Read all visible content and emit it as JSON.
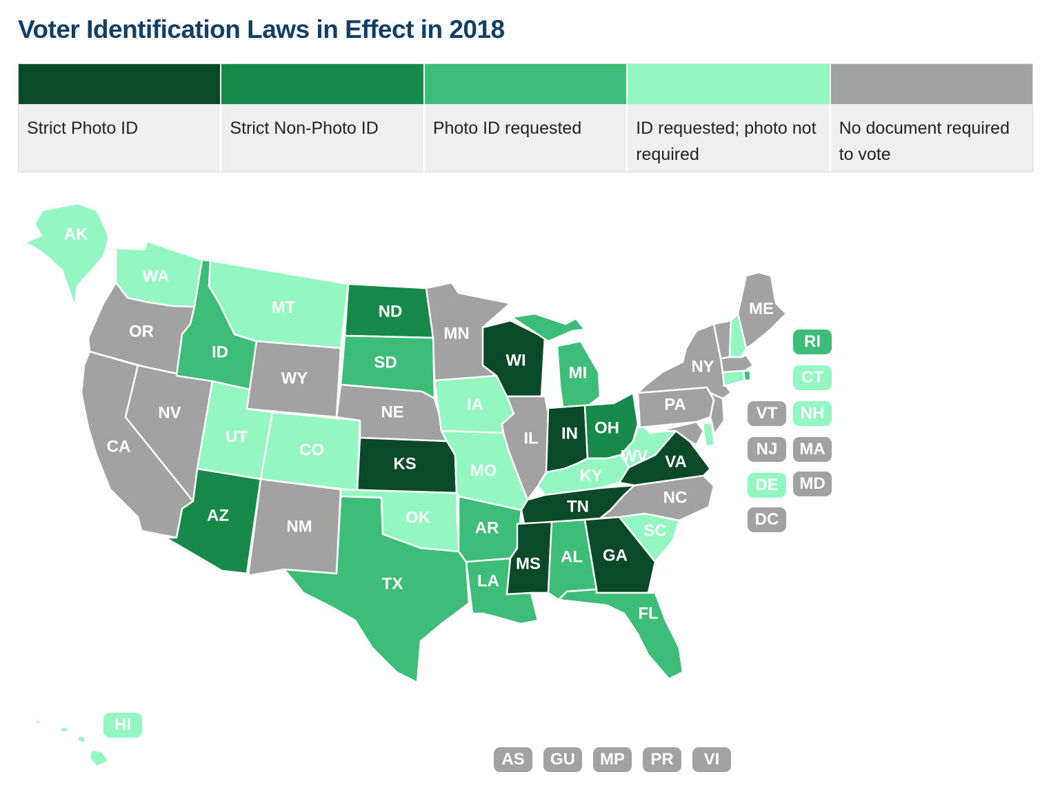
{
  "title": "Voter Identification Laws in Effect in 2018",
  "legend": [
    {
      "key": "strict_photo",
      "label": "Strict Photo ID",
      "color": "#0b4a28"
    },
    {
      "key": "strict_nonphoto",
      "label": "Strict Non-Photo ID",
      "color": "#178a49"
    },
    {
      "key": "photo_requested",
      "label": "Photo ID requested",
      "color": "#3dbd78"
    },
    {
      "key": "id_requested",
      "label": "ID requested; photo not required",
      "color": "#94f7c1"
    },
    {
      "key": "no_document",
      "label": "No document required to vote",
      "color": "#a2a2a2"
    }
  ],
  "states": {
    "AK": {
      "label": "AK",
      "category": "id_requested"
    },
    "HI": {
      "label": "HI",
      "category": "id_requested"
    },
    "WA": {
      "label": "WA",
      "category": "id_requested"
    },
    "OR": {
      "label": "OR",
      "category": "no_document"
    },
    "CA": {
      "label": "CA",
      "category": "no_document"
    },
    "NV": {
      "label": "NV",
      "category": "no_document"
    },
    "ID": {
      "label": "ID",
      "category": "photo_requested"
    },
    "MT": {
      "label": "MT",
      "category": "id_requested"
    },
    "WY": {
      "label": "WY",
      "category": "no_document"
    },
    "UT": {
      "label": "UT",
      "category": "id_requested"
    },
    "CO": {
      "label": "CO",
      "category": "id_requested"
    },
    "AZ": {
      "label": "AZ",
      "category": "strict_nonphoto"
    },
    "NM": {
      "label": "NM",
      "category": "no_document"
    },
    "ND": {
      "label": "ND",
      "category": "strict_nonphoto"
    },
    "SD": {
      "label": "SD",
      "category": "photo_requested"
    },
    "NE": {
      "label": "NE",
      "category": "no_document"
    },
    "KS": {
      "label": "KS",
      "category": "strict_photo"
    },
    "OK": {
      "label": "OK",
      "category": "id_requested"
    },
    "TX": {
      "label": "TX",
      "category": "photo_requested"
    },
    "MN": {
      "label": "MN",
      "category": "no_document"
    },
    "IA": {
      "label": "IA",
      "category": "id_requested"
    },
    "MO": {
      "label": "MO",
      "category": "id_requested"
    },
    "AR": {
      "label": "AR",
      "category": "photo_requested"
    },
    "LA": {
      "label": "LA",
      "category": "photo_requested"
    },
    "WI": {
      "label": "WI",
      "category": "strict_photo"
    },
    "IL": {
      "label": "IL",
      "category": "no_document"
    },
    "MI": {
      "label": "MI",
      "category": "photo_requested"
    },
    "IN": {
      "label": "IN",
      "category": "strict_photo"
    },
    "OH": {
      "label": "OH",
      "category": "strict_nonphoto"
    },
    "KY": {
      "label": "KY",
      "category": "id_requested"
    },
    "TN": {
      "label": "TN",
      "category": "strict_photo"
    },
    "MS": {
      "label": "MS",
      "category": "strict_photo"
    },
    "AL": {
      "label": "AL",
      "category": "photo_requested"
    },
    "GA": {
      "label": "GA",
      "category": "strict_photo"
    },
    "FL": {
      "label": "FL",
      "category": "photo_requested"
    },
    "SC": {
      "label": "SC",
      "category": "id_requested"
    },
    "NC": {
      "label": "NC",
      "category": "no_document"
    },
    "VA": {
      "label": "VA",
      "category": "strict_photo"
    },
    "WV": {
      "label": "WV",
      "category": "id_requested"
    },
    "PA": {
      "label": "PA",
      "category": "no_document"
    },
    "NY": {
      "label": "NY",
      "category": "no_document"
    },
    "ME": {
      "label": "ME",
      "category": "no_document"
    },
    "VT": {
      "label": "VT",
      "category": "no_document"
    },
    "NH": {
      "label": "NH",
      "category": "id_requested"
    },
    "MA": {
      "label": "MA",
      "category": "no_document"
    },
    "RI": {
      "label": "RI",
      "category": "photo_requested"
    },
    "CT": {
      "label": "CT",
      "category": "id_requested"
    },
    "NJ": {
      "label": "NJ",
      "category": "no_document"
    },
    "DE": {
      "label": "DE",
      "category": "id_requested"
    },
    "MD": {
      "label": "MD",
      "category": "no_document"
    },
    "DC": {
      "label": "DC",
      "category": "no_document"
    },
    "AS": {
      "label": "AS",
      "category": "no_document"
    },
    "GU": {
      "label": "GU",
      "category": "no_document"
    },
    "MP": {
      "label": "MP",
      "category": "no_document"
    },
    "PR": {
      "label": "PR",
      "category": "no_document"
    },
    "VI": {
      "label": "VI",
      "category": "no_document"
    }
  }
}
